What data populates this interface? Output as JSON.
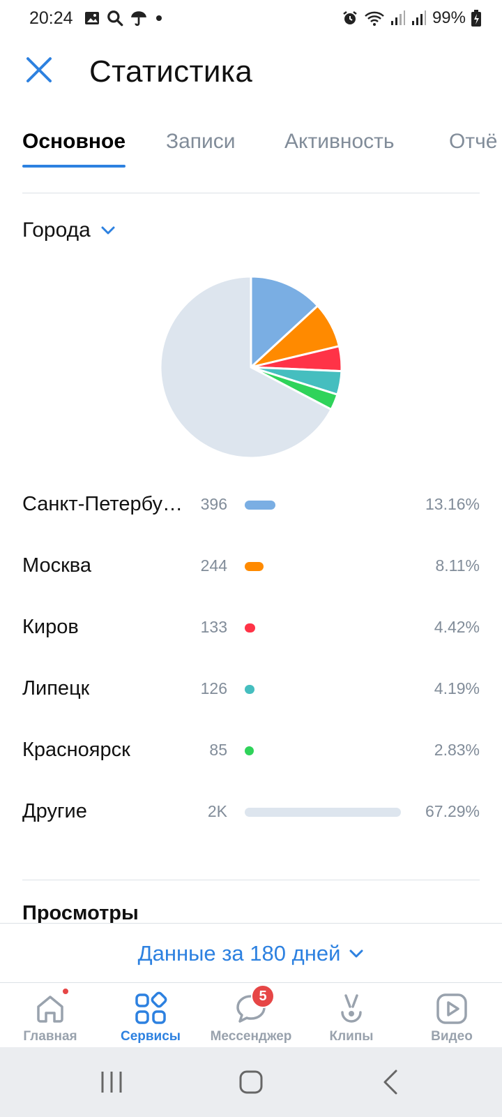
{
  "status_bar": {
    "time": "20:24",
    "battery": "99%",
    "left_icons": [
      "image-icon",
      "search-icon",
      "umbrella-icon",
      "dot-icon"
    ],
    "right_icons": [
      "alarm-icon",
      "wifi-icon",
      "signal-icon",
      "signal-icon",
      "battery-charging-icon"
    ]
  },
  "header": {
    "title": "Статистика",
    "close_icon": "close-icon"
  },
  "tabs": [
    {
      "label": "Основное",
      "active": true
    },
    {
      "label": "Записи",
      "active": false
    },
    {
      "label": "Активность",
      "active": false
    },
    {
      "label": "Отчё",
      "active": false
    }
  ],
  "cities_section": {
    "dropdown_label": "Города",
    "items": [
      {
        "name": "Санкт-Петербу…",
        "count": "396",
        "percent": "13.16%",
        "share": 13.16,
        "color": "#7aaee3"
      },
      {
        "name": "Москва",
        "count": "244",
        "percent": "8.11%",
        "share": 8.11,
        "color": "#ff8a00"
      },
      {
        "name": "Киров",
        "count": "133",
        "percent": "4.42%",
        "share": 4.42,
        "color": "#ff3347"
      },
      {
        "name": "Липецк",
        "count": "126",
        "percent": "4.19%",
        "share": 4.19,
        "color": "#45bebf"
      },
      {
        "name": "Красноярск",
        "count": "85",
        "percent": "2.83%",
        "share": 2.83,
        "color": "#2fd35a"
      },
      {
        "name": "Другие",
        "count": "2K",
        "percent": "67.29%",
        "share": 67.29,
        "color": "#dde5ee"
      }
    ]
  },
  "views_section": {
    "title": "Просмотры"
  },
  "period": {
    "label": "Данные за 180 дней"
  },
  "bottom_nav": [
    {
      "label": "Главная",
      "icon": "home-icon",
      "active": false,
      "dot": true
    },
    {
      "label": "Сервисы",
      "icon": "services-icon",
      "active": true
    },
    {
      "label": "Мессенджер",
      "icon": "messenger-icon",
      "active": false,
      "badge": "5"
    },
    {
      "label": "Клипы",
      "icon": "clips-icon",
      "active": false
    },
    {
      "label": "Видео",
      "icon": "video-icon",
      "active": false
    }
  ],
  "colors": {
    "accent": "#2d81e0",
    "secondary_text": "#818c99",
    "badge_red": "#e64646"
  }
}
